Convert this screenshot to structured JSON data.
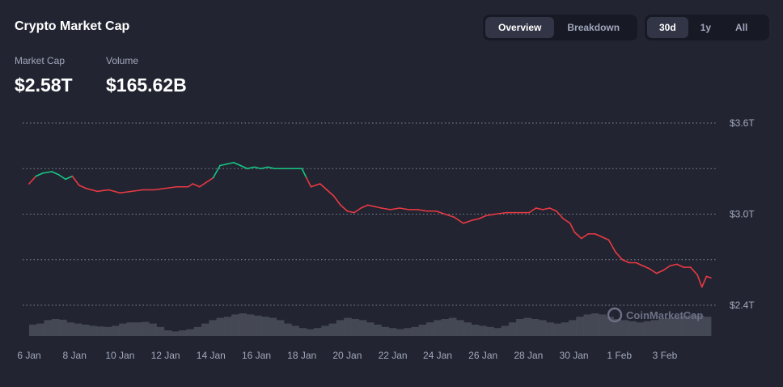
{
  "header": {
    "title": "Crypto Market Cap",
    "view_tabs": [
      {
        "label": "Overview",
        "active": true
      },
      {
        "label": "Breakdown",
        "active": false
      }
    ],
    "range_tabs": [
      {
        "label": "30d",
        "active": true
      },
      {
        "label": "1y",
        "active": false
      },
      {
        "label": "All",
        "active": false
      }
    ]
  },
  "stats": {
    "market_cap_label": "Market Cap",
    "market_cap_value": "$2.58T",
    "volume_label": "Volume",
    "volume_value": "$165.62B"
  },
  "watermark": "CoinMarketCap",
  "colors": {
    "up": "#16c784",
    "down": "#ea3943",
    "volume": "#4a4d5a",
    "grid": "#cfd6e4",
    "text_muted": "#a1a7bb",
    "background": "#222531"
  },
  "chart_data": {
    "type": "line",
    "y_tick_labels": [
      "$3.6T",
      "$3.0T",
      "$2.4T"
    ],
    "y_ticks": [
      3.6,
      3.0,
      2.4
    ],
    "ylim": [
      2.4,
      3.6
    ],
    "x_tick_labels": [
      "6 Jan",
      "8 Jan",
      "10 Jan",
      "12 Jan",
      "14 Jan",
      "16 Jan",
      "18 Jan",
      "20 Jan",
      "22 Jan",
      "24 Jan",
      "26 Jan",
      "28 Jan",
      "30 Jan",
      "1 Feb",
      "3 Feb"
    ],
    "x_ticks": [
      0,
      2,
      4,
      6,
      8,
      10,
      12,
      14,
      16,
      17.97,
      19.97,
      21.97,
      23.97,
      25.97,
      27.97
    ],
    "baseline": 3.23,
    "series": [
      {
        "x": [
          0,
          0.3,
          0.6,
          1.0,
          1.3,
          1.6,
          1.9,
          2.2,
          2.5,
          3.0,
          3.5,
          4.0,
          4.5,
          5.0,
          5.5,
          6.0,
          6.5,
          7.0,
          7.2,
          7.5,
          7.8,
          8.1,
          8.4,
          8.7,
          9.0,
          9.3,
          9.6,
          9.9,
          10.2,
          10.5,
          10.8,
          11.1,
          11.4,
          11.7,
          12.0,
          12.2,
          12.4,
          12.8,
          13.1,
          13.4,
          13.7,
          14.0,
          14.3,
          14.6,
          14.9,
          15.2,
          15.5,
          15.9,
          16.3,
          16.7,
          17.1,
          17.5,
          17.9,
          18.3,
          18.7,
          19.1,
          19.5,
          19.8,
          20.1,
          20.5,
          21.0,
          21.5,
          22.0,
          22.3,
          22.6,
          22.9,
          23.2,
          23.5,
          23.8,
          24.0,
          24.3,
          24.6,
          24.9,
          25.2,
          25.5,
          25.8,
          26.1,
          26.4,
          26.7,
          27.0,
          27.3,
          27.6,
          27.9,
          28.2,
          28.5,
          28.8,
          29.1,
          29.4,
          29.6,
          29.8,
          30.0
        ],
        "y": [
          3.2,
          3.25,
          3.27,
          3.28,
          3.26,
          3.23,
          3.25,
          3.19,
          3.17,
          3.15,
          3.16,
          3.14,
          3.15,
          3.16,
          3.16,
          3.17,
          3.18,
          3.18,
          3.2,
          3.18,
          3.21,
          3.24,
          3.32,
          3.33,
          3.34,
          3.32,
          3.3,
          3.31,
          3.3,
          3.31,
          3.3,
          3.3,
          3.3,
          3.3,
          3.3,
          3.24,
          3.18,
          3.2,
          3.16,
          3.12,
          3.06,
          3.02,
          3.01,
          3.04,
          3.06,
          3.05,
          3.04,
          3.03,
          3.04,
          3.03,
          3.03,
          3.02,
          3.02,
          3.0,
          2.98,
          2.94,
          2.96,
          2.97,
          2.99,
          3.0,
          3.01,
          3.01,
          3.01,
          3.04,
          3.03,
          3.04,
          3.02,
          2.97,
          2.94,
          2.88,
          2.84,
          2.87,
          2.87,
          2.85,
          2.83,
          2.75,
          2.7,
          2.68,
          2.68,
          2.66,
          2.64,
          2.61,
          2.63,
          2.66,
          2.67,
          2.65,
          2.65,
          2.6,
          2.52,
          2.59,
          2.58
        ]
      }
    ],
    "volume": [
      0.5,
      0.55,
      0.7,
      0.75,
      0.72,
      0.6,
      0.55,
      0.5,
      0.45,
      0.42,
      0.4,
      0.45,
      0.55,
      0.6,
      0.6,
      0.62,
      0.55,
      0.4,
      0.25,
      0.2,
      0.25,
      0.3,
      0.4,
      0.55,
      0.7,
      0.8,
      0.85,
      0.95,
      1.0,
      0.95,
      0.9,
      0.85,
      0.8,
      0.7,
      0.55,
      0.45,
      0.35,
      0.3,
      0.35,
      0.45,
      0.55,
      0.7,
      0.8,
      0.75,
      0.7,
      0.6,
      0.5,
      0.4,
      0.35,
      0.3,
      0.35,
      0.4,
      0.5,
      0.6,
      0.7,
      0.75,
      0.8,
      0.7,
      0.6,
      0.5,
      0.45,
      0.4,
      0.35,
      0.45,
      0.6,
      0.75,
      0.8,
      0.75,
      0.7,
      0.6,
      0.55,
      0.6,
      0.7,
      0.85,
      0.95,
      1.0,
      0.95,
      0.85,
      0.75,
      0.7,
      0.65,
      0.6,
      0.65,
      0.7,
      0.75,
      0.8,
      0.85,
      0.9,
      0.95,
      0.9,
      0.85
    ],
    "grid": true,
    "legend": "none"
  }
}
